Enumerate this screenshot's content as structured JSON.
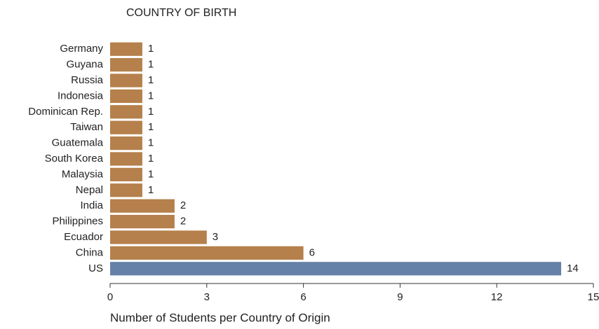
{
  "chart_data": {
    "type": "hbar",
    "title": "COUNTRY OF BIRTH",
    "x_label": "Number of Students per Country of Origin",
    "categories": [
      "Germany",
      "Guyana",
      "Russia",
      "Indonesia",
      "Dominican Rep.",
      "Taiwan",
      "Guatemala",
      "South Korea",
      "Malaysia",
      "Nepal",
      "India",
      "Philippines",
      "Ecuador",
      "China",
      "US"
    ],
    "values": [
      1,
      1,
      1,
      1,
      1,
      1,
      1,
      1,
      1,
      1,
      2,
      2,
      3,
      6,
      14
    ],
    "colors": [
      "#b5804b",
      "#b5804b",
      "#b5804b",
      "#b5804b",
      "#b5804b",
      "#b5804b",
      "#b5804b",
      "#b5804b",
      "#b5804b",
      "#b5804b",
      "#b5804b",
      "#b5804b",
      "#b5804b",
      "#b5804b",
      "#6581a8"
    ],
    "xlim": [
      0,
      15
    ],
    "xticks": [
      0,
      3,
      6,
      9,
      12,
      15
    ],
    "grid": false
  }
}
